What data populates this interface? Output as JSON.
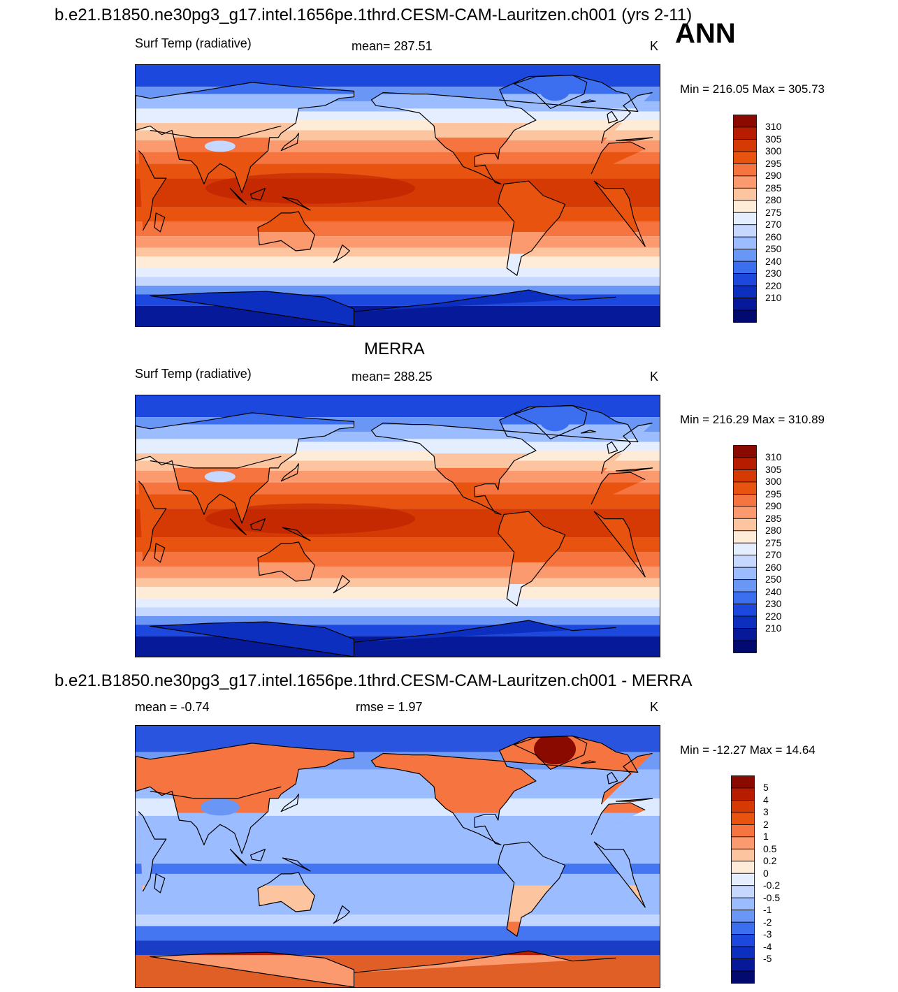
{
  "season": "ANN",
  "panels": [
    {
      "id": "model",
      "title": "b.e21.B1850.ne30pg3_g17.intel.1656pe.1thrd.CESM-CAM-Lauritzen.ch001 (yrs 2-11)",
      "variable": "Surf Temp (radiative)",
      "stat": "mean= 287.51",
      "units": "K",
      "minmax": "Min = 216.05 Max = 305.73",
      "colorbar_labels": [
        "310",
        "305",
        "300",
        "295",
        "290",
        "285",
        "280",
        "275",
        "270",
        "260",
        "250",
        "240",
        "230",
        "220",
        "210"
      ],
      "colorbar_colors": [
        "#8b0a00",
        "#b71c00",
        "#d63a04",
        "#e8540f",
        "#f57440",
        "#fb9a6f",
        "#fdc4a0",
        "#feebd8",
        "#e5eeff",
        "#c6d8ff",
        "#9bbcff",
        "#6a96f5",
        "#3c6ef0",
        "#1d48dd",
        "#0c2fbf",
        "#061a99",
        "#020a70"
      ]
    },
    {
      "id": "obs",
      "title": "MERRA",
      "variable": "Surf Temp (radiative)",
      "stat": "mean= 288.25",
      "units": "K",
      "minmax": "Min = 216.29 Max = 310.89",
      "colorbar_labels": [
        "310",
        "305",
        "300",
        "295",
        "290",
        "285",
        "280",
        "275",
        "270",
        "260",
        "250",
        "240",
        "230",
        "220",
        "210"
      ],
      "colorbar_colors": [
        "#8b0a00",
        "#b71c00",
        "#d63a04",
        "#e8540f",
        "#f57440",
        "#fb9a6f",
        "#fdc4a0",
        "#feebd8",
        "#e5eeff",
        "#c6d8ff",
        "#9bbcff",
        "#6a96f5",
        "#3c6ef0",
        "#1d48dd",
        "#0c2fbf",
        "#061a99",
        "#020a70"
      ]
    },
    {
      "id": "diff",
      "title": "b.e21.B1850.ne30pg3_g17.intel.1656pe.1thrd.CESM-CAM-Lauritzen.ch001 - MERRA",
      "stat_left": "mean =  -0.74",
      "stat_mid": "rmse =   1.97",
      "units": "K",
      "minmax": "Min = -12.27 Max =  14.64",
      "colorbar_labels": [
        "5",
        "4",
        "3",
        "2",
        "1",
        "0.5",
        "0.2",
        "0",
        "-0.2",
        "-0.5",
        "-1",
        "-2",
        "-3",
        "-4",
        "-5"
      ],
      "colorbar_colors": [
        "#8b0a00",
        "#b71c00",
        "#d63a04",
        "#e8540f",
        "#f57440",
        "#fb9a6f",
        "#fdc4a0",
        "#feebd8",
        "#e5eeff",
        "#c6d8ff",
        "#9bbcff",
        "#6a96f5",
        "#3c6ef0",
        "#1d48dd",
        "#0c2fbf",
        "#061a99",
        "#020a70"
      ]
    }
  ]
}
